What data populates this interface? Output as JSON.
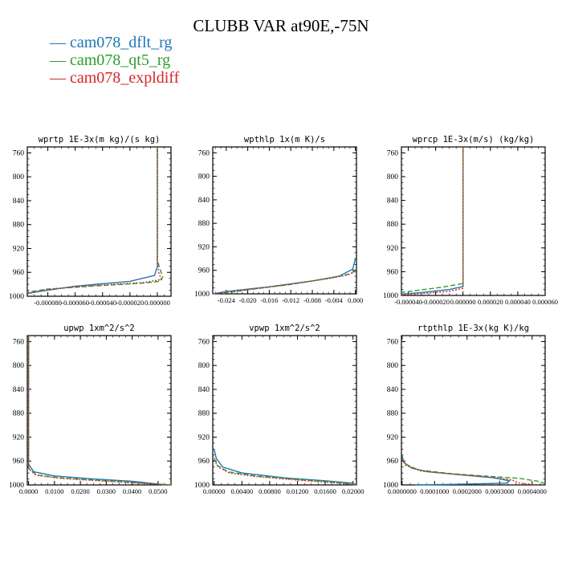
{
  "title": "CLUBB VAR at90E,-75N",
  "legend": [
    {
      "label": "cam078_dflt_rg",
      "color": "#1f77b4"
    },
    {
      "label": "cam078_qt5_rg",
      "color": "#2ca02c"
    },
    {
      "label": "cam078_expldiff",
      "color": "#d62728"
    }
  ],
  "chart_data": [
    {
      "type": "line",
      "title": "wprtp  1E-3x(m kg)/(s kg)",
      "ylim": [
        1000,
        750
      ],
      "yticks": [
        "760",
        "800",
        "840",
        "880",
        "920",
        "960",
        "1000"
      ],
      "xlim": [
        -9.5e-05,
        1e-05
      ],
      "xticks": [
        [
          -8e-05,
          "-0.000080"
        ],
        [
          -6e-05,
          "-0.000060"
        ],
        [
          -4e-05,
          "-0.000040"
        ],
        [
          -2e-05,
          "-0.000020"
        ],
        [
          0,
          "0.000000"
        ]
      ],
      "series": [
        {
          "name": "cam078_dflt_rg",
          "points": [
            [
              0,
              750
            ],
            [
              0,
              900
            ],
            [
              0,
              950
            ],
            [
              -2e-06,
              965
            ],
            [
              -2e-05,
              975
            ],
            [
              -6e-05,
              983
            ],
            [
              -9.5e-05,
              995
            ]
          ]
        },
        {
          "name": "cam078_qt5_rg",
          "points": [
            [
              0,
              750
            ],
            [
              0,
              940
            ],
            [
              2e-06,
              955
            ],
            [
              4e-06,
              968
            ],
            [
              2e-06,
              975
            ],
            [
              -1e-05,
              978
            ],
            [
              -4e-05,
              982
            ],
            [
              -8e-05,
              988
            ],
            [
              -9.5e-05,
              993
            ]
          ]
        },
        {
          "name": "cam078_expldiff",
          "points": [
            [
              0,
              750
            ],
            [
              0,
              945
            ],
            [
              1e-06,
              960
            ],
            [
              3e-06,
              972
            ],
            [
              -1e-05,
              977
            ],
            [
              -4e-05,
              981
            ],
            [
              -8e-05,
              988
            ],
            [
              -9.5e-05,
              996
            ]
          ]
        }
      ]
    },
    {
      "type": "line",
      "title": "wpthlp  1x(m K)/s",
      "ylim": [
        1000,
        750
      ],
      "yticks": [
        "760",
        "800",
        "840",
        "880",
        "920",
        "960",
        "1000"
      ],
      "xlim": [
        -0.0265,
        0.0002
      ],
      "xticks": [
        [
          -0.024,
          "-0.024"
        ],
        [
          -0.02,
          "-0.020"
        ],
        [
          -0.016,
          "-0.016"
        ],
        [
          -0.012,
          "-0.012"
        ],
        [
          -0.008,
          "-0.008"
        ],
        [
          -0.004,
          "-0.004"
        ],
        [
          0,
          "0.000"
        ]
      ],
      "series": [
        {
          "name": "cam078_dflt_rg",
          "points": [
            [
              0,
              940
            ],
            [
              -0.0005,
              958
            ],
            [
              -0.003,
              970
            ],
            [
              -0.008,
              978
            ],
            [
              -0.016,
              988
            ],
            [
              -0.024,
              996
            ],
            [
              -0.0265,
              1000
            ]
          ]
        },
        {
          "name": "cam078_qt5_rg",
          "points": [
            [
              0,
              960
            ],
            [
              -0.001,
              966
            ],
            [
              -0.004,
              972
            ],
            [
              -0.012,
              984
            ],
            [
              -0.02,
              993
            ],
            [
              -0.025,
              1000
            ]
          ]
        },
        {
          "name": "cam078_expldiff",
          "points": [
            [
              0,
              962
            ],
            [
              -0.0015,
              968
            ],
            [
              -0.005,
              974
            ],
            [
              -0.013,
              985
            ],
            [
              -0.021,
              994
            ],
            [
              -0.026,
              1000
            ]
          ]
        }
      ]
    },
    {
      "type": "line",
      "title": "wprcp  1E-3x(m/s) (kg/kg)",
      "ylim": [
        1000,
        750
      ],
      "yticks": [
        "760",
        "800",
        "840",
        "880",
        "920",
        "960",
        "1000"
      ],
      "xlim": [
        -4.5e-05,
        6e-05
      ],
      "xticks": [
        [
          -4e-05,
          "-0.000040"
        ],
        [
          -2e-05,
          "-0.000020"
        ],
        [
          0,
          "0.000000"
        ],
        [
          2e-05,
          "0.000020"
        ],
        [
          4e-05,
          "0.000040"
        ],
        [
          6e-05,
          "0.000060"
        ]
      ],
      "series": [
        {
          "name": "cam078_dflt_rg",
          "points": [
            [
              0,
              750
            ],
            [
              0,
              985
            ],
            [
              -1e-05,
              990
            ],
            [
              -3e-05,
              995
            ],
            [
              -4.5e-05,
              998
            ]
          ]
        },
        {
          "name": "cam078_qt5_rg",
          "points": [
            [
              0,
              750
            ],
            [
              0,
              980
            ],
            [
              -1.5e-05,
              986
            ],
            [
              -3.5e-05,
              992
            ],
            [
              -4.5e-05,
              995
            ]
          ]
        },
        {
          "name": "cam078_expldiff",
          "points": [
            [
              0,
              750
            ],
            [
              0,
              988
            ],
            [
              -1e-05,
              993
            ],
            [
              -3e-05,
              997
            ],
            [
              -4.5e-05,
              999
            ]
          ]
        }
      ]
    },
    {
      "type": "line",
      "title": "upwp  1xm^2/s^2",
      "ylim": [
        1000,
        750
      ],
      "yticks": [
        "760",
        "800",
        "840",
        "880",
        "920",
        "960",
        "1000"
      ],
      "xlim": [
        -0.0005,
        0.055
      ],
      "xticks": [
        [
          0,
          "0.0000"
        ],
        [
          0.01,
          "0.0100"
        ],
        [
          0.02,
          "0.0200"
        ],
        [
          0.03,
          "0.0300"
        ],
        [
          0.04,
          "0.0400"
        ],
        [
          0.05,
          "0.0500"
        ]
      ],
      "series": [
        {
          "name": "cam078_dflt_rg",
          "points": [
            [
              0,
              750
            ],
            [
              0,
              965
            ],
            [
              0.002,
              978
            ],
            [
              0.01,
              985
            ],
            [
              0.025,
              990
            ],
            [
              0.04,
              994
            ],
            [
              0.053,
              1000
            ]
          ]
        },
        {
          "name": "cam078_qt5_rg",
          "points": [
            [
              0,
              750
            ],
            [
              0,
              972
            ],
            [
              0.003,
              983
            ],
            [
              0.012,
              988
            ],
            [
              0.03,
              993
            ],
            [
              0.055,
              1000
            ]
          ]
        },
        {
          "name": "cam078_expldiff",
          "points": [
            [
              0,
              750
            ],
            [
              0,
              973
            ],
            [
              0.003,
              984
            ],
            [
              0.012,
              989
            ],
            [
              0.03,
              994
            ],
            [
              0.055,
              1000
            ]
          ]
        }
      ]
    },
    {
      "type": "line",
      "title": "vpwp  1xm^2/s^2",
      "ylim": [
        1000,
        750
      ],
      "yticks": [
        "760",
        "800",
        "840",
        "880",
        "920",
        "960",
        "1000"
      ],
      "xlim": [
        -0.0002,
        0.0205
      ],
      "xticks": [
        [
          0,
          "0.00000"
        ],
        [
          0.004,
          "0.00400"
        ],
        [
          0.008,
          "0.00800"
        ],
        [
          0.012,
          "0.01200"
        ],
        [
          0.016,
          "0.01600"
        ],
        [
          0.02,
          "0.02000"
        ]
      ],
      "series": [
        {
          "name": "cam078_dflt_rg",
          "points": [
            [
              0,
              940
            ],
            [
              0.0003,
              955
            ],
            [
              0.0012,
              970
            ],
            [
              0.004,
              980
            ],
            [
              0.01,
              988
            ],
            [
              0.016,
              993
            ],
            [
              0.02,
              997
            ],
            [
              0.0205,
              1000
            ]
          ]
        },
        {
          "name": "cam078_qt5_rg",
          "points": [
            [
              0,
              955
            ],
            [
              0.0005,
              968
            ],
            [
              0.002,
              978
            ],
            [
              0.006,
              985
            ],
            [
              0.012,
              991
            ],
            [
              0.018,
              996
            ],
            [
              0.0205,
              1000
            ]
          ]
        },
        {
          "name": "cam078_expldiff",
          "points": [
            [
              0,
              958
            ],
            [
              0.0006,
              970
            ],
            [
              0.0022,
              980
            ],
            [
              0.006,
              986
            ],
            [
              0.012,
              992
            ],
            [
              0.018,
              997
            ],
            [
              0.0205,
              1000
            ]
          ]
        }
      ]
    },
    {
      "type": "line",
      "title": "rtpthlp  1E-3x(kg K)/kg",
      "ylim": [
        1000,
        750
      ],
      "yticks": [
        "760",
        "800",
        "840",
        "880",
        "920",
        "960",
        "1000"
      ],
      "xlim": [
        -2e-06,
        0.00044
      ],
      "xticks": [
        [
          0,
          "0.0000000"
        ],
        [
          0.0001,
          "0.0001000"
        ],
        [
          0.0002,
          "0.0002000"
        ],
        [
          0.0003,
          "0.0003000"
        ],
        [
          0.0004,
          "0.0004000"
        ]
      ],
      "series": [
        {
          "name": "cam078_dflt_rg",
          "points": [
            [
              0,
              950
            ],
            [
              5e-06,
              962
            ],
            [
              3e-05,
              972
            ],
            [
              8e-05,
              978
            ],
            [
              0.00018,
              983
            ],
            [
              0.00028,
              988
            ],
            [
              0.00033,
              993
            ],
            [
              0.00032,
              997
            ],
            [
              0.00015,
              999
            ],
            [
              4e-05,
              1000
            ]
          ]
        },
        {
          "name": "cam078_qt5_rg",
          "points": [
            [
              0,
              955
            ],
            [
              1e-05,
              965
            ],
            [
              5e-05,
              975
            ],
            [
              0.00015,
              981
            ],
            [
              0.00025,
              985
            ],
            [
              0.00036,
              989
            ],
            [
              0.00042,
              994
            ],
            [
              0.00044,
              998
            ]
          ]
        },
        {
          "name": "cam078_expldiff",
          "points": [
            [
              0,
              957
            ],
            [
              1e-05,
              967
            ],
            [
              6e-05,
              977
            ],
            [
              0.00018,
              983
            ],
            [
              0.00028,
              987
            ],
            [
              0.00034,
              992
            ],
            [
              0.00036,
              997
            ],
            [
              0.00042,
              1000
            ]
          ]
        }
      ]
    }
  ]
}
